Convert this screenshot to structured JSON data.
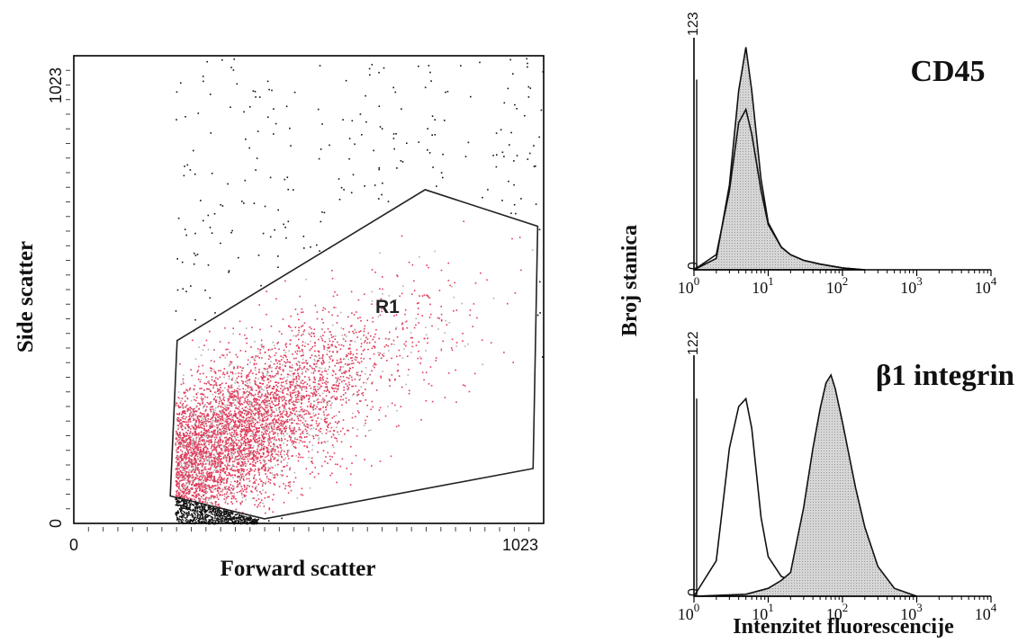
{
  "scatter": {
    "xlabel": "Forward scatter",
    "ylabel": "Side scatter",
    "x_ticks": [
      "0",
      "1023"
    ],
    "y_ticks": [
      "0",
      "1023"
    ],
    "xlim": [
      0,
      1023
    ],
    "ylim": [
      0,
      1023
    ],
    "gate": {
      "label": "R1",
      "vertices": [
        [
          225,
          400
        ],
        [
          765,
          730
        ],
        [
          1010,
          650
        ],
        [
          1000,
          120
        ],
        [
          415,
          10
        ],
        [
          210,
          60
        ]
      ]
    },
    "colors": {
      "inside_gate": "#e03a5a",
      "outside_gate": "#111111",
      "gate_line": "#222222"
    }
  },
  "histograms": {
    "ylabel": "Broj stanica",
    "xlabel": "Intenzitet fluorescencije",
    "x_scale": "log",
    "xlim": [
      1,
      10000
    ],
    "x_tick_base": "10",
    "x_tick_exponents": [
      "0",
      "1",
      "2",
      "3",
      "4"
    ]
  },
  "chart_data": [
    {
      "type": "scatter",
      "xlabel": "Forward scatter",
      "ylabel": "Side scatter",
      "xlim": [
        0,
        1023
      ],
      "ylim": [
        0,
        1023
      ],
      "gate_label": "R1",
      "gate_polygon": [
        [
          225,
          400
        ],
        [
          765,
          730
        ],
        [
          1010,
          650
        ],
        [
          1000,
          120
        ],
        [
          415,
          10
        ],
        [
          210,
          60
        ]
      ],
      "population_center": [
        260,
        120
      ]
    },
    {
      "type": "line",
      "title": "CD45",
      "x_scale": "log",
      "xlim": [
        1,
        10000
      ],
      "ylim": [
        0,
        123
      ],
      "y_ticks": [
        "0",
        "123"
      ],
      "series": [
        {
          "fill": true,
          "x": [
            1,
            2,
            3,
            4,
            5,
            6,
            8,
            10,
            15,
            20,
            30,
            50,
            100,
            200
          ],
          "values": [
            0,
            6,
            45,
            95,
            118,
            95,
            48,
            25,
            12,
            8,
            5,
            3,
            1,
            0
          ]
        },
        {
          "fill": false,
          "x": [
            1,
            2,
            3,
            4,
            5,
            6,
            8,
            10,
            15,
            20,
            30,
            50,
            100,
            200
          ],
          "values": [
            0,
            8,
            42,
            78,
            85,
            72,
            42,
            24,
            12,
            8,
            5,
            3,
            1,
            0
          ]
        }
      ]
    },
    {
      "type": "line",
      "title": "β1 integrin",
      "x_scale": "log",
      "xlim": [
        1,
        10000
      ],
      "ylim": [
        0,
        122
      ],
      "y_ticks": [
        "0",
        "122"
      ],
      "series": [
        {
          "fill": false,
          "x": [
            1,
            2,
            3,
            4,
            5,
            6,
            8,
            10,
            15,
            20,
            30,
            40,
            60,
            100
          ],
          "values": [
            0,
            18,
            75,
            96,
            100,
            85,
            40,
            20,
            10,
            8,
            4,
            2,
            1,
            0
          ]
        },
        {
          "fill": true,
          "x": [
            1,
            5,
            10,
            15,
            20,
            30,
            40,
            50,
            60,
            70,
            80,
            100,
            150,
            200,
            300,
            500,
            1000
          ],
          "values": [
            0,
            1,
            4,
            8,
            12,
            45,
            75,
            95,
            108,
            112,
            105,
            88,
            55,
            35,
            15,
            4,
            0
          ]
        }
      ]
    }
  ]
}
